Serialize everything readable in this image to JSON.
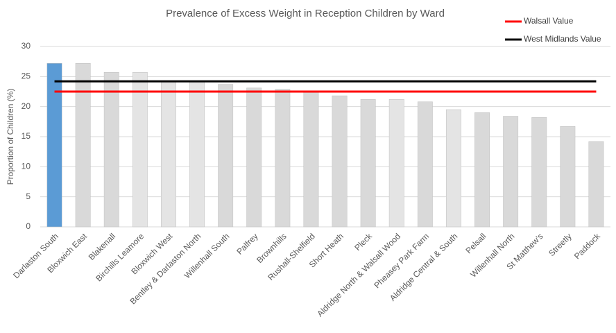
{
  "chart_data": {
    "type": "bar",
    "title": "Prevalence of Excess Weight in Reception Children by Ward",
    "y_label": "Proportion of Children (%)",
    "categories": [
      "Darlaston South",
      "Bloxwich East",
      "Blakenall",
      "Birchills Leamore",
      "Bloxwich West",
      "Bentley & Darlaston North",
      "Willenhall South",
      "Palfrey",
      "Brownhills",
      "Rushall-Shelfield",
      "Short Heath",
      "Pleck",
      "Aldridge North & Walsall Wood",
      "Pheasey Park Farm",
      "Aldridge Central & South",
      "Pelsall",
      "Willenhall North",
      "St Matthew's",
      "Streetly",
      "Paddock"
    ],
    "values": [
      27.2,
      27.2,
      25.7,
      25.7,
      24.3,
      24.1,
      23.7,
      23.1,
      22.9,
      22.6,
      21.8,
      21.2,
      21.2,
      20.8,
      19.5,
      19.0,
      18.4,
      18.2,
      16.7,
      14.2
    ],
    "colors": [
      "#5b9bd5",
      "#d9d9d9",
      "#d9d9d9",
      "#e4e4e4",
      "#e4e4e4",
      "#e4e4e4",
      "#d9d9d9",
      "#d9d9d9",
      "#d9d9d9",
      "#d9d9d9",
      "#d9d9d9",
      "#d9d9d9",
      "#e4e4e4",
      "#d9d9d9",
      "#e4e4e4",
      "#d9d9d9",
      "#d9d9d9",
      "#d9d9d9",
      "#d9d9d9",
      "#d9d9d9"
    ],
    "reference_lines": [
      {
        "name": "Walsall Value",
        "value": 22.5,
        "color": "#ff0000"
      },
      {
        "name": "West Midlands Value",
        "value": 24.2,
        "color": "#000000"
      }
    ],
    "ylim": [
      0,
      30
    ],
    "yticks": [
      0,
      5,
      10,
      15,
      20,
      25,
      30
    ],
    "grid": true
  }
}
